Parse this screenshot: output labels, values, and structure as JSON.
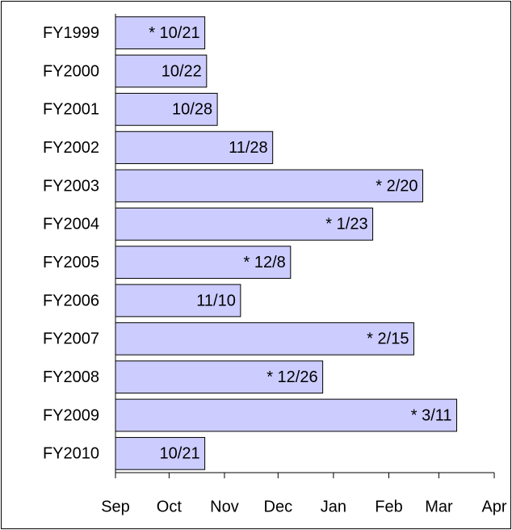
{
  "chart_data": {
    "type": "barh",
    "categories": [
      "FY1999",
      "FY2000",
      "FY2001",
      "FY2002",
      "FY2003",
      "FY2004",
      "FY2005",
      "FY2006",
      "FY2007",
      "FY2008",
      "FY2009",
      "FY2010"
    ],
    "values": [
      50,
      51,
      57,
      88,
      172,
      144,
      98,
      70,
      167,
      116,
      191,
      50
    ],
    "value_labels": [
      "* 10/21",
      "10/22",
      "10/28",
      "11/28",
      "* 2/20",
      "* 1/23",
      "* 12/8",
      "11/10",
      "* 2/15",
      "* 12/26",
      "* 3/11",
      "10/21"
    ],
    "color": "#ccccff",
    "xlim": [
      0,
      212
    ],
    "xticks": [
      {
        "value": 0,
        "label": "Sep"
      },
      {
        "value": 30,
        "label": "Oct"
      },
      {
        "value": 61,
        "label": "Nov"
      },
      {
        "value": 91,
        "label": "Dec"
      },
      {
        "value": 122,
        "label": "Jan"
      },
      {
        "value": 153,
        "label": "Feb"
      },
      {
        "value": 181,
        "label": "Mar"
      },
      {
        "value": 212,
        "label": "Apr"
      }
    ]
  }
}
